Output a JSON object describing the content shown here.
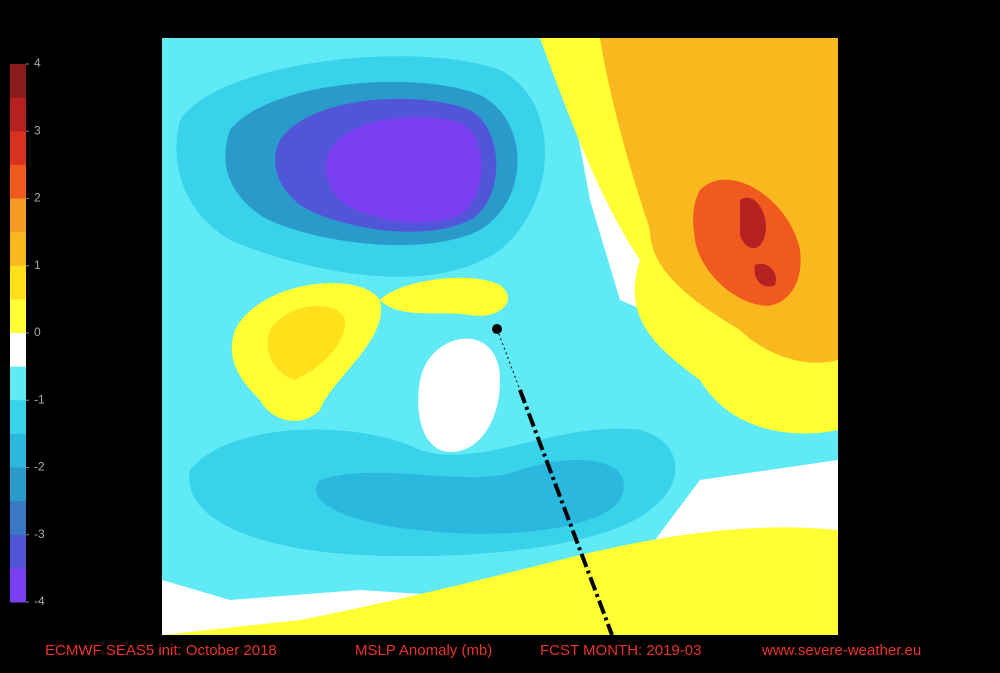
{
  "colorbar": {
    "ticks": [
      4,
      3,
      2,
      1,
      0,
      -1,
      -2,
      -3,
      -4
    ],
    "colors": [
      "#8b1a1a",
      "#b52020",
      "#d8321e",
      "#f05a1e",
      "#f59a23",
      "#f8b81e",
      "#ffe01a",
      "#ffff33",
      "#ffffff",
      "#5feaf6",
      "#38d2ea",
      "#2bb8de",
      "#2a9acb",
      "#3a78c4",
      "#5155d8",
      "#7a3ff0"
    ]
  },
  "footer": {
    "model": "ECMWF SEAS5  init: October 2018",
    "variable": "MSLP Anomaly (mb)",
    "forecast": "FCST MONTH: 2019-03",
    "website": "www.severe-weather.eu"
  }
}
